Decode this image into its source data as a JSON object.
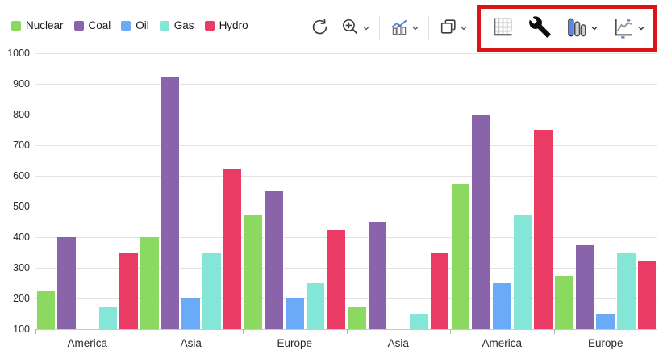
{
  "toolbar": {
    "buttons": [
      {
        "id": "refresh",
        "icon": "refresh-icon",
        "dropdown": false,
        "highlighted": false
      },
      {
        "id": "zoom-in",
        "icon": "zoom-in-icon",
        "dropdown": true,
        "highlighted": false
      },
      {
        "id": "chart-overview",
        "icon": "combo-chart-icon",
        "dropdown": true,
        "highlighted": false
      },
      {
        "id": "copy",
        "icon": "copy-icon",
        "dropdown": true,
        "highlighted": false
      },
      {
        "id": "toggle-gridlines",
        "icon": "grid-icon",
        "dropdown": false,
        "highlighted": true
      },
      {
        "id": "settings",
        "icon": "wrench-icon",
        "dropdown": false,
        "highlighted": true
      },
      {
        "id": "bar-chart-type",
        "icon": "bar-chart-icon",
        "dropdown": true,
        "highlighted": true
      },
      {
        "id": "line-chart-type",
        "icon": "line-chart-icon",
        "dropdown": true,
        "highlighted": true
      }
    ],
    "highlight_border_color": "#dc1414"
  },
  "chart_data": {
    "type": "bar",
    "title": "",
    "xlabel": "",
    "ylabel": "",
    "categories": [
      "America",
      "Asia",
      "Europe",
      "Asia",
      "America",
      "Europe"
    ],
    "series": [
      {
        "name": "Nuclear",
        "color": "#8cd962",
        "values": [
          225,
          400,
          475,
          175,
          575,
          275
        ]
      },
      {
        "name": "Coal",
        "color": "#8a64ab",
        "values": [
          400,
          925,
          550,
          450,
          800,
          375
        ]
      },
      {
        "name": "Oil",
        "color": "#6aabf7",
        "values": [
          null,
          200,
          200,
          null,
          250,
          150
        ]
      },
      {
        "name": "Gas",
        "color": "#84e6d7",
        "values": [
          175,
          350,
          250,
          150,
          475,
          350
        ]
      },
      {
        "name": "Hydro",
        "color": "#e93b63",
        "values": [
          350,
          625,
          425,
          350,
          750,
          325
        ]
      }
    ],
    "ylim": [
      100,
      1000
    ],
    "ytick_step": 100,
    "yticks": [
      100,
      200,
      300,
      400,
      500,
      600,
      700,
      800,
      900,
      1000
    ],
    "grid": "horizontal",
    "legend_position": "top-left"
  }
}
